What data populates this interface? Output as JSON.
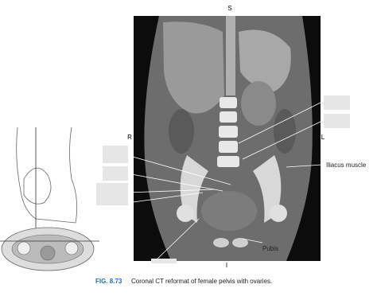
{
  "image": {
    "orientation": {
      "superior": "S",
      "right": "R",
      "left": "L",
      "inferior": "I"
    },
    "labels": {
      "iliacus": "Iliacus muscle",
      "pubis": "Pubis"
    }
  },
  "caption": {
    "number": "FIG. 8.73",
    "text": "Coronal CT reformat of female pelvis with ovaries."
  }
}
